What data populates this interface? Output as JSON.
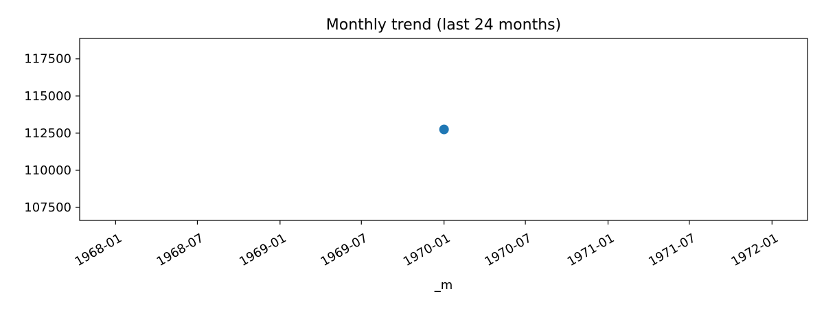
{
  "chart_data": {
    "type": "scatter",
    "title": "Monthly trend (last 24 months)",
    "xlabel": "_m",
    "ylabel": "",
    "x_type": "date",
    "xlim": [
      "1967-10-13",
      "1972-03-20"
    ],
    "ylim": [
      106625,
      118875
    ],
    "x_ticks": [
      "1968-01",
      "1968-07",
      "1969-01",
      "1969-07",
      "1970-01",
      "1970-07",
      "1971-01",
      "1971-07",
      "1972-01"
    ],
    "y_ticks": [
      107500,
      110000,
      112500,
      115000,
      117500
    ],
    "grid": false,
    "legend": "none",
    "series": [
      {
        "x": [
          "1970-01-01"
        ],
        "y": [
          112750
        ],
        "color": "#1f77b4"
      }
    ]
  }
}
